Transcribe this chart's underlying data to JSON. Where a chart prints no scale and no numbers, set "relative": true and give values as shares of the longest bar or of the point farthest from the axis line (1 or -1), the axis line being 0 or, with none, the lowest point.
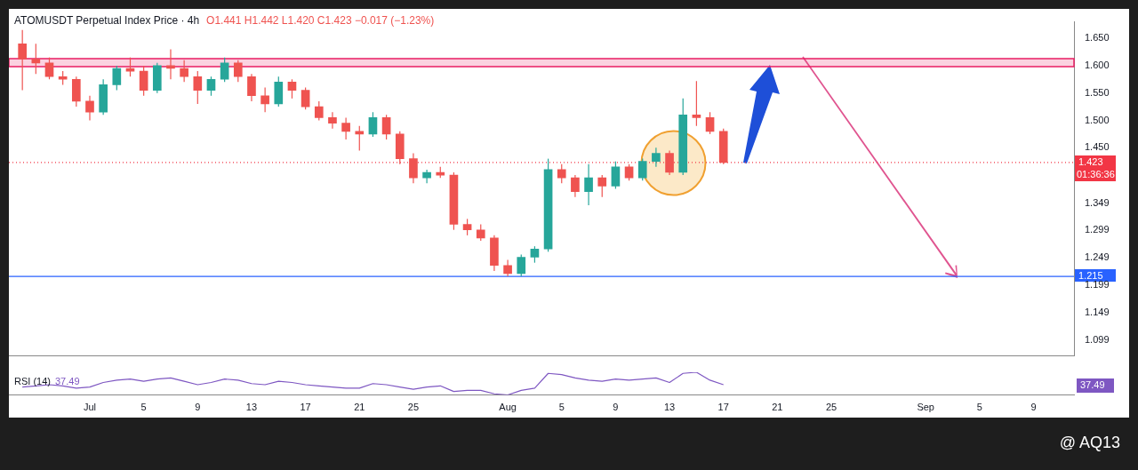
{
  "chart_data": [
    {
      "type": "candlestick",
      "title": "ATOMUSDT Perpetual Index Price · 4h",
      "annotations": [
        "O1.441 H1.442 L1.420 C1.423 −0.017 (−1.23%)",
        "01:36:36",
        "@ AQ13"
      ],
      "x": [
        "--06-26",
        "--06-27",
        "--06-28",
        "--06-29",
        "--06-30",
        "--07-01",
        "--07-02",
        "--07-03",
        "--07-04",
        "--07-05",
        "--07-06",
        "--07-07",
        "--07-08",
        "--07-09",
        "--07-10",
        "--07-11",
        "--07-12",
        "--07-13",
        "--07-14",
        "--07-15",
        "--07-16",
        "--07-17",
        "--07-18",
        "--07-19",
        "--07-20",
        "--07-21",
        "--07-22",
        "--07-23",
        "--07-24",
        "--07-25",
        "--07-26",
        "--07-27",
        "--07-28",
        "--07-29",
        "--07-30",
        "--07-31",
        "--08-01",
        "--08-02",
        "--08-03",
        "--08-04",
        "--08-05",
        "--08-06",
        "--08-07",
        "--08-08",
        "--08-09",
        "--08-10",
        "--08-11",
        "--08-12",
        "--08-13",
        "--08-14",
        "--08-15",
        "--08-16",
        "--08-17"
      ],
      "ohlc": [
        [
          1.64,
          1.665,
          1.555,
          1.612
        ],
        [
          1.612,
          1.64,
          1.585,
          1.605
        ],
        [
          1.605,
          1.615,
          1.575,
          1.58
        ],
        [
          1.58,
          1.59,
          1.565,
          1.575
        ],
        [
          1.575,
          1.58,
          1.525,
          1.535
        ],
        [
          1.535,
          1.545,
          1.5,
          1.515
        ],
        [
          1.515,
          1.575,
          1.51,
          1.565
        ],
        [
          1.565,
          1.6,
          1.555,
          1.595
        ],
        [
          1.595,
          1.615,
          1.58,
          1.59
        ],
        [
          1.59,
          1.6,
          1.545,
          1.555
        ],
        [
          1.555,
          1.605,
          1.55,
          1.6
        ],
        [
          1.6,
          1.63,
          1.575,
          1.595
        ],
        [
          1.595,
          1.61,
          1.57,
          1.58
        ],
        [
          1.58,
          1.59,
          1.53,
          1.555
        ],
        [
          1.555,
          1.58,
          1.545,
          1.575
        ],
        [
          1.575,
          1.615,
          1.57,
          1.605
        ],
        [
          1.605,
          1.61,
          1.57,
          1.58
        ],
        [
          1.58,
          1.585,
          1.535,
          1.545
        ],
        [
          1.545,
          1.56,
          1.515,
          1.53
        ],
        [
          1.53,
          1.58,
          1.525,
          1.57
        ],
        [
          1.57,
          1.575,
          1.54,
          1.555
        ],
        [
          1.555,
          1.56,
          1.52,
          1.525
        ],
        [
          1.525,
          1.535,
          1.5,
          1.505
        ],
        [
          1.505,
          1.515,
          1.485,
          1.495
        ],
        [
          1.495,
          1.505,
          1.465,
          1.48
        ],
        [
          1.48,
          1.49,
          1.445,
          1.475
        ],
        [
          1.475,
          1.515,
          1.47,
          1.505
        ],
        [
          1.505,
          1.51,
          1.465,
          1.475
        ],
        [
          1.475,
          1.48,
          1.42,
          1.43
        ],
        [
          1.43,
          1.44,
          1.385,
          1.395
        ],
        [
          1.395,
          1.41,
          1.385,
          1.405
        ],
        [
          1.405,
          1.415,
          1.395,
          1.4
        ],
        [
          1.4,
          1.405,
          1.3,
          1.31
        ],
        [
          1.31,
          1.32,
          1.29,
          1.3
        ],
        [
          1.3,
          1.31,
          1.28,
          1.285
        ],
        [
          1.285,
          1.29,
          1.225,
          1.235
        ],
        [
          1.235,
          1.245,
          1.215,
          1.22
        ],
        [
          1.22,
          1.255,
          1.215,
          1.25
        ],
        [
          1.25,
          1.27,
          1.24,
          1.265
        ],
        [
          1.265,
          1.43,
          1.26,
          1.41
        ],
        [
          1.41,
          1.42,
          1.385,
          1.395
        ],
        [
          1.395,
          1.4,
          1.36,
          1.37
        ],
        [
          1.37,
          1.42,
          1.345,
          1.395
        ],
        [
          1.395,
          1.4,
          1.36,
          1.38
        ],
        [
          1.38,
          1.425,
          1.375,
          1.415
        ],
        [
          1.415,
          1.42,
          1.39,
          1.395
        ],
        [
          1.395,
          1.43,
          1.39,
          1.425
        ],
        [
          1.425,
          1.45,
          1.415,
          1.44
        ],
        [
          1.44,
          1.445,
          1.4,
          1.405
        ],
        [
          1.405,
          1.54,
          1.4,
          1.51
        ],
        [
          1.51,
          1.572,
          1.49,
          1.505
        ],
        [
          1.505,
          1.515,
          1.475,
          1.48
        ],
        [
          1.48,
          1.485,
          1.42,
          1.423
        ]
      ],
      "colors": [
        "#ef5350",
        "#ef5350",
        "#ef5350",
        "#ef5350",
        "#ef5350",
        "#ef5350",
        "#26a69a",
        "#26a69a",
        "#ef5350",
        "#ef5350",
        "#26a69a",
        "#ef5350",
        "#ef5350",
        "#ef5350",
        "#26a69a",
        "#26a69a",
        "#ef5350",
        "#ef5350",
        "#ef5350",
        "#26a69a",
        "#ef5350",
        "#ef5350",
        "#ef5350",
        "#ef5350",
        "#ef5350",
        "#ef5350",
        "#26a69a",
        "#ef5350",
        "#ef5350",
        "#ef5350",
        "#26a69a",
        "#ef5350",
        "#ef5350",
        "#ef5350",
        "#ef5350",
        "#ef5350",
        "#ef5350",
        "#26a69a",
        "#26a69a",
        "#26a69a",
        "#ef5350",
        "#ef5350",
        "#26a69a",
        "#ef5350",
        "#26a69a",
        "#ef5350",
        "#26a69a",
        "#26a69a",
        "#ef5350",
        "#26a69a",
        "#ef5350",
        "#ef5350",
        "#ef5350"
      ],
      "xlim": [
        "--06-25",
        "--09-12"
      ],
      "ylim": [
        1.07,
        1.68
      ],
      "yticks": [
        {
          "value": 1.099,
          "label": "1.099"
        },
        {
          "value": 1.149,
          "label": "1.149"
        },
        {
          "value": 1.199,
          "label": "1.199"
        },
        {
          "value": 1.249,
          "label": "1.249"
        },
        {
          "value": 1.299,
          "label": "1.299"
        },
        {
          "value": 1.349,
          "label": "1.349"
        },
        {
          "value": 1.45,
          "label": "1.450"
        },
        {
          "value": 1.5,
          "label": "1.500"
        },
        {
          "value": 1.55,
          "label": "1.550"
        },
        {
          "value": 1.6,
          "label": "1.600"
        },
        {
          "value": 1.65,
          "label": "1.650"
        }
      ],
      "tick_labels": "y",
      "ref_lines": [
        {
          "axis": "y",
          "value": 1.423,
          "label": "1.423",
          "color": "#f23645",
          "line_style": "dotted"
        },
        {
          "axis": "y",
          "value": 1.215,
          "label": "1.215",
          "color": "#2962ff",
          "line_style": "solid"
        }
      ],
      "bands": [
        {
          "axis": "y",
          "from": 1.598,
          "to": 1.613,
          "color": "#e91e63"
        }
      ]
    },
    {
      "type": "line",
      "title": "RSI (14)",
      "annotations": [
        "37.49"
      ],
      "relative": true,
      "tick_labels": "x",
      "series": [
        {
          "color": "#7e57c2",
          "values": [
            0.35,
            0.4,
            0.45,
            0.4,
            0.3,
            0.35,
            0.55,
            0.65,
            0.7,
            0.6,
            0.7,
            0.75,
            0.6,
            0.45,
            0.55,
            0.7,
            0.65,
            0.5,
            0.45,
            0.6,
            0.55,
            0.45,
            0.4,
            0.35,
            0.3,
            0.3,
            0.5,
            0.45,
            0.35,
            0.25,
            0.35,
            0.4,
            0.15,
            0.2,
            0.2,
            0.05,
            0.0,
            0.2,
            0.3,
            0.95,
            0.9,
            0.75,
            0.65,
            0.6,
            0.7,
            0.65,
            0.7,
            0.75,
            0.55,
            0.95,
            1.0,
            0.65,
            0.45
          ]
        }
      ],
      "x": [
        "--06-26",
        "--06-27",
        "--06-28",
        "--06-29",
        "--06-30",
        "--07-01",
        "--07-02",
        "--07-03",
        "--07-04",
        "--07-05",
        "--07-06",
        "--07-07",
        "--07-08",
        "--07-09",
        "--07-10",
        "--07-11",
        "--07-12",
        "--07-13",
        "--07-14",
        "--07-15",
        "--07-16",
        "--07-17",
        "--07-18",
        "--07-19",
        "--07-20",
        "--07-21",
        "--07-22",
        "--07-23",
        "--07-24",
        "--07-25",
        "--07-26",
        "--07-27",
        "--07-28",
        "--07-29",
        "--07-30",
        "--07-31",
        "--08-01",
        "--08-02",
        "--08-03",
        "--08-04",
        "--08-05",
        "--08-06",
        "--08-07",
        "--08-08",
        "--08-09",
        "--08-10",
        "--08-11",
        "--08-12",
        "--08-13",
        "--08-14",
        "--08-15",
        "--08-16",
        "--08-17"
      ],
      "xlim": [
        "--06-25",
        "--09-12"
      ],
      "xticks": [
        {
          "value": "--07-01",
          "label": "Jul"
        },
        {
          "value": "--07-05",
          "label": "5"
        },
        {
          "value": "--07-09",
          "label": "9"
        },
        {
          "value": "--07-13",
          "label": "13"
        },
        {
          "value": "--07-17",
          "label": "17"
        },
        {
          "value": "--07-21",
          "label": "21"
        },
        {
          "value": "--07-25",
          "label": "25"
        },
        {
          "value": "--08-01",
          "label": "Aug"
        },
        {
          "value": "--08-05",
          "label": "5"
        },
        {
          "value": "--08-09",
          "label": "9"
        },
        {
          "value": "--08-13",
          "label": "13"
        },
        {
          "value": "--08-17",
          "label": "17"
        },
        {
          "value": "--08-21",
          "label": "21"
        },
        {
          "value": "--08-25",
          "label": "25"
        },
        {
          "value": "--09-01",
          "label": "Sep"
        },
        {
          "value": "--09-05",
          "label": "5"
        },
        {
          "value": "--09-09",
          "label": "9"
        }
      ]
    }
  ]
}
